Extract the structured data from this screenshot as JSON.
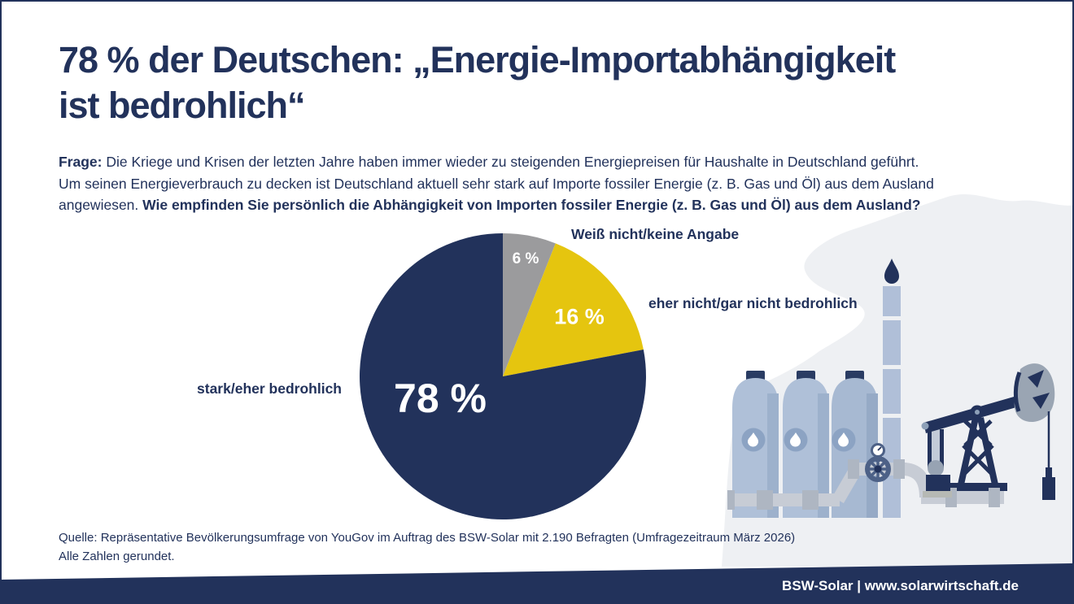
{
  "page": {
    "title_line1": "78 % der Deutschen: „Energie-Importabhängigkeit",
    "title_line2": "ist bedrohlich“"
  },
  "question": {
    "label": "Frage:",
    "line1_rest": " Die Kriege und Krisen der letzten Jahre haben immer wieder zu steigenden Energiepreisen für Haushalte in Deutschland geführt.",
    "line2": "Um seinen Energieverbrauch zu decken ist Deutschland aktuell sehr stark auf Importe fossiler Energie (z. B. Gas und Öl) aus dem Ausland",
    "line3_normal": "angewiesen. ",
    "line3_bold": "Wie empfinden Sie persönlich die Abhängigkeit von Importen fossiler Energie (z. B. Gas und Öl) aus dem Ausland?"
  },
  "chart_data": {
    "type": "pie",
    "title": "78 % der Deutschen: „Energie-Importabhängigkeit ist bedrohlich“",
    "unit": "%",
    "start_angle_deg": 0,
    "direction": "clockwise",
    "legend_position": "labels-around-pie",
    "slices": [
      {
        "label": "Weiß nicht/keine Angabe",
        "value": 6,
        "value_label": "6 %",
        "color": "#9B9B9D"
      },
      {
        "label": "eher nicht/gar nicht bedrohlich",
        "value": 16,
        "value_label": "16 %",
        "color": "#E5C50F"
      },
      {
        "label": "stark/eher bedrohlich",
        "value": 78,
        "value_label": "78 %",
        "color": "#22325B"
      }
    ]
  },
  "illustration": {
    "name": "fossil-fuel-industry",
    "elements": [
      "storage-tanks",
      "flare-stack-with-flame",
      "pipeline-with-valve-and-gauge",
      "oil-pump-jack"
    ]
  },
  "source": {
    "line1": "Quelle: Repräsentative Bevölkerungsumfrage von YouGov im Auftrag des BSW-Solar mit 2.190 Befragten (Umfragezeitraum März 2026)",
    "line2": "Alle Zahlen gerundet."
  },
  "footer": {
    "text": "BSW-Solar | www.solarwirtschaft.de"
  },
  "colors": {
    "navy": "#22325B",
    "yellow": "#E5C50F",
    "gray": "#9B9B9D",
    "blob_background": "#EEF0F3"
  }
}
